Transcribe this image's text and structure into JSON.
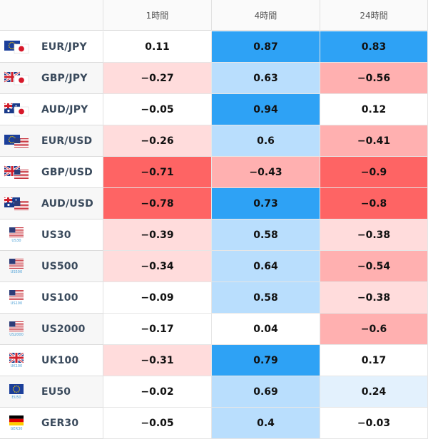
{
  "header": {
    "col1": "1時間",
    "col2": "4時間",
    "col3": "24時間"
  },
  "colors": {
    "strong_blue": "#2ea2f5",
    "light_blue": "#b9defd",
    "pale_blue": "#e3f1fd",
    "strong_red": "#fe6464",
    "light_red": "#ffb0b0",
    "pale_red": "#ffdcdc",
    "neutral": "#ffffff"
  },
  "rows": [
    {
      "pair": "EUR/JPY",
      "icon": "flag-eu-jp-icon",
      "v1": "0.11",
      "v2": "0.87",
      "v3": "0.83"
    },
    {
      "pair": "GBP/JPY",
      "icon": "flag-gb-jp-icon",
      "v1": "−0.27",
      "v2": "0.63",
      "v3": "−0.56"
    },
    {
      "pair": "AUD/JPY",
      "icon": "flag-au-jp-icon",
      "v1": "−0.05",
      "v2": "0.94",
      "v3": "0.12"
    },
    {
      "pair": "EUR/USD",
      "icon": "flag-eu-us-icon",
      "v1": "−0.26",
      "v2": "0.6",
      "v3": "−0.41"
    },
    {
      "pair": "GBP/USD",
      "icon": "flag-gb-us-icon",
      "v1": "−0.71",
      "v2": "−0.43",
      "v3": "−0.9"
    },
    {
      "pair": "AUD/USD",
      "icon": "flag-au-us-icon",
      "v1": "−0.78",
      "v2": "0.73",
      "v3": "−0.8"
    },
    {
      "pair": "US30",
      "icon": "flag-us-icon",
      "sublabel": "US30",
      "v1": "−0.39",
      "v2": "0.58",
      "v3": "−0.38"
    },
    {
      "pair": "US500",
      "icon": "flag-us-icon",
      "sublabel": "US500",
      "v1": "−0.34",
      "v2": "0.64",
      "v3": "−0.54"
    },
    {
      "pair": "US100",
      "icon": "flag-us-icon",
      "sublabel": "US100",
      "v1": "−0.09",
      "v2": "0.58",
      "v3": "−0.38"
    },
    {
      "pair": "US2000",
      "icon": "flag-us-icon",
      "sublabel": "US2000",
      "v1": "−0.17",
      "v2": "0.04",
      "v3": "−0.6"
    },
    {
      "pair": "UK100",
      "icon": "flag-gb-icon",
      "sublabel": "UK100",
      "v1": "−0.31",
      "v2": "0.79",
      "v3": "0.17"
    },
    {
      "pair": "EU50",
      "icon": "flag-eu-icon",
      "sublabel": "EU50",
      "v1": "−0.02",
      "v2": "0.69",
      "v3": "0.24"
    },
    {
      "pair": "GER30",
      "icon": "flag-de-icon",
      "sublabel": "GER30",
      "v1": "−0.05",
      "v2": "0.4",
      "v3": "−0.03"
    }
  ]
}
